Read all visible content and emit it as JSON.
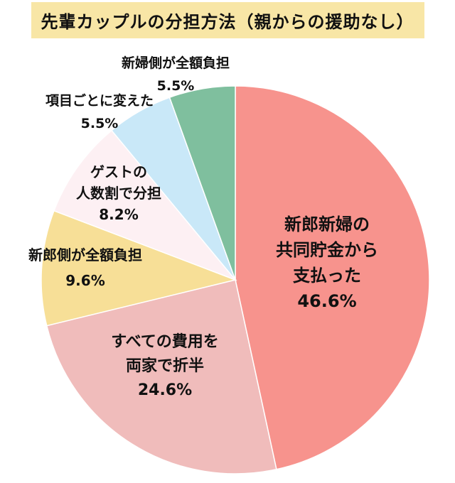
{
  "title": "先輩カップルの分担方法（親からの援助なし）",
  "chart_data": {
    "type": "pie",
    "title": "先輩カップルの分担方法（親からの援助なし）",
    "start_angle_deg": 0,
    "direction": "clockwise",
    "slices": [
      {
        "label_lines": [
          "新郎新婦の",
          "共同貯金から",
          "支払った"
        ],
        "value": 46.6,
        "value_text": "46.6%",
        "color": "#f7938d"
      },
      {
        "label_lines": [
          "すべての費用を",
          "両家で折半"
        ],
        "value": 24.6,
        "value_text": "24.6%",
        "color": "#f0bcbb"
      },
      {
        "label_lines": [
          "新郎側が全額負担"
        ],
        "value": 9.6,
        "value_text": "9.6%",
        "color": "#f7df97"
      },
      {
        "label_lines": [
          "ゲストの",
          "人数割で分担"
        ],
        "value": 8.2,
        "value_text": "8.2%",
        "color": "#fdf0f3"
      },
      {
        "label_lines": [
          "項目ごとに変えた"
        ],
        "value": 5.5,
        "value_text": "5.5%",
        "color": "#c9e8f8"
      },
      {
        "label_lines": [
          "新婦側が全額負担"
        ],
        "value": 5.5,
        "value_text": "5.5%",
        "color": "#7fbf9e"
      }
    ]
  }
}
